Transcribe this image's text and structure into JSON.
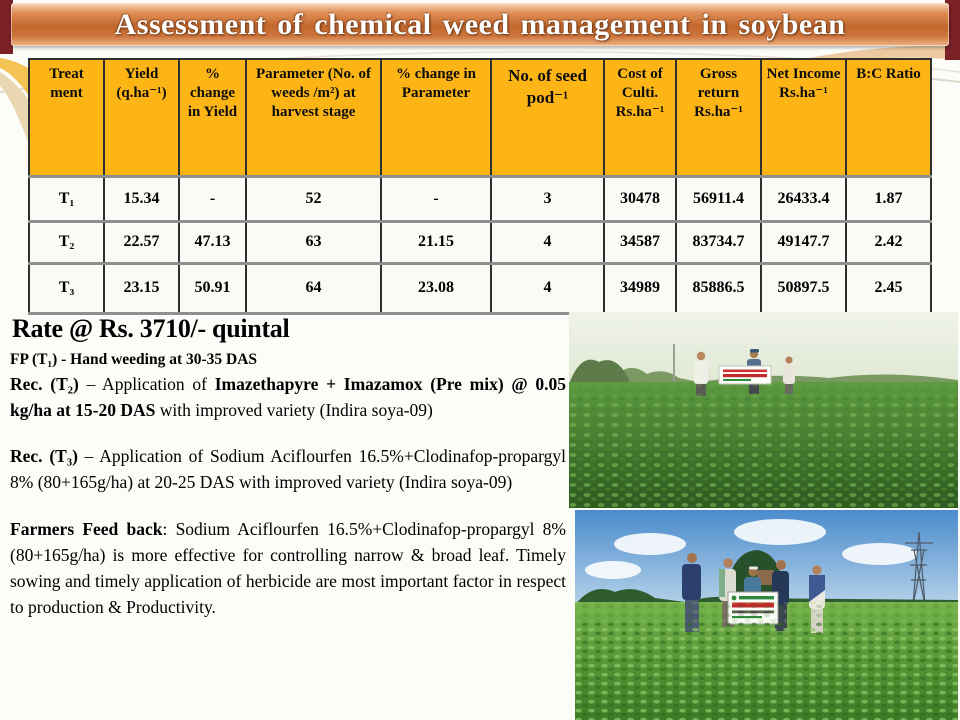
{
  "slide": {
    "title": "Assessment of chemical weed management in soybean"
  },
  "colors": {
    "header_gold": "#FCB515",
    "banner_orange": "#C2662C",
    "corner_maroon": "#7A2127",
    "row_separator_gray": "#8F8F8F"
  },
  "table": {
    "headers": [
      "Treat ment",
      "Yield (q.ha⁻¹)",
      "% change in Yield",
      "Parameter (No. of weeds /m²) at harvest stage",
      "% change in Parameter",
      "No. of seed pod⁻¹",
      "Cost of Culti. Rs.ha⁻¹",
      "Gross return Rs.ha⁻¹",
      "Net Income Rs.ha⁻¹",
      "B:C Ratio"
    ],
    "rows": [
      [
        "T₁",
        "15.34",
        "-",
        "52",
        "-",
        "3",
        "30478",
        "56911.4",
        "26433.4",
        "1.87"
      ],
      [
        "T₂",
        "22.57",
        "47.13",
        "63",
        "21.15",
        "4",
        "34587",
        "83734.7",
        "49147.7",
        "2.42"
      ],
      [
        "T₃",
        "23.15",
        "50.91",
        "64",
        "23.08",
        "4",
        "34989",
        "85886.5",
        "50897.5",
        "2.45"
      ]
    ]
  },
  "rate_note": "Rate @ Rs. 3710/- quintal",
  "notes": {
    "fp": [
      {
        "text": "FP (T₁) - Hand weeding at 30-35 DAS",
        "bold": true
      }
    ],
    "rec_t2": [
      {
        "text": "Rec. (T₂) ",
        "bold": true
      },
      {
        "text": "– Application of ",
        "bold": false
      },
      {
        "text": "Imazethapyre + Imazamox (Pre mix) @ 0.05 kg/ha at 15-20 DAS ",
        "bold": true
      },
      {
        "text": "with improved variety (Indira soya-09)",
        "bold": false
      }
    ],
    "rec_t3": [
      {
        "text": "Rec. (T₃) ",
        "bold": true
      },
      {
        "text": "– Application of Sodium Aciflourfen 16.5%+Clodinafop-propargyl 8% (80+165g/ha) at 20-25 DAS with improved variety (Indira soya-09)",
        "bold": false
      }
    ],
    "farmers_feedback": [
      {
        "text": "Farmers Feed back",
        "bold": true
      },
      {
        "text": ": Sodium Aciflourfen 16.5%+Clodinafop-propargyl 8% (80+165g/ha) is more effective for controlling narrow & broad leaf. Timely sowing and timely application of herbicide are most important factor in respect to production & Productivity.",
        "bold": false
      }
    ]
  },
  "photos": {
    "top": {
      "alt": "Soybean field with three people holding a demonstration banner"
    },
    "bottom": {
      "alt": "Five people standing in a soybean crop field with a signboard and a power line tower"
    }
  }
}
